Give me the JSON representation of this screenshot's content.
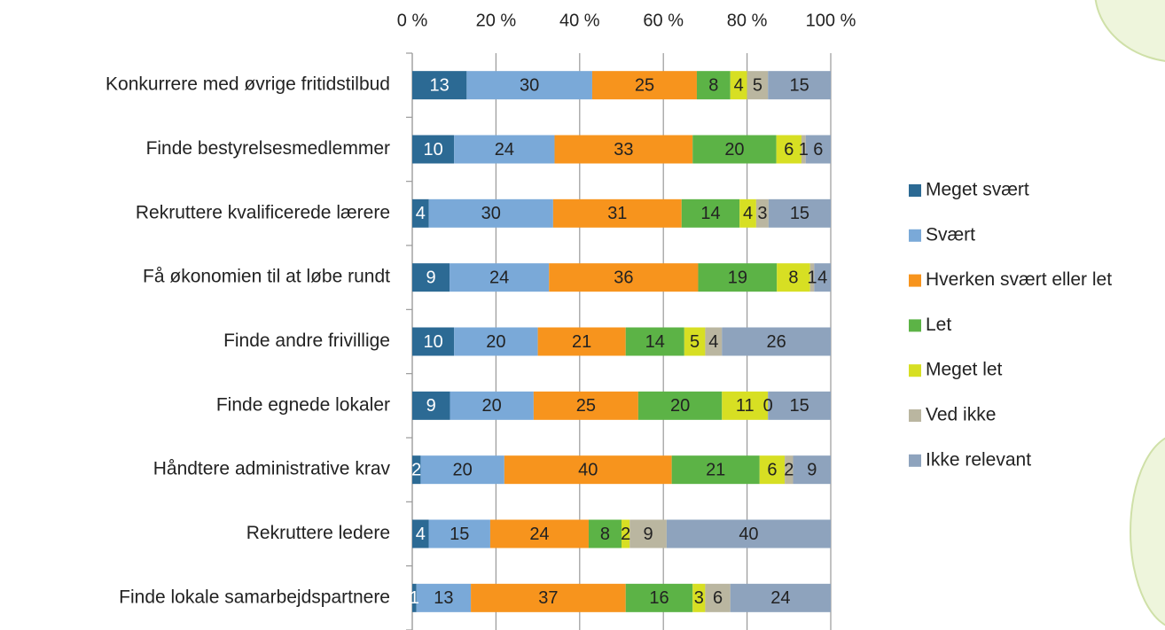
{
  "chart_data": {
    "type": "bar",
    "orientation": "horizontal",
    "stacked": "percent",
    "categories": [
      "Konkurrere med øvrige fritidstilbud",
      "Finde bestyrelsesmedlemmer",
      "Rekruttere kvalificerede lærere",
      "Få økonomien til at løbe rundt",
      "Finde andre frivillige",
      "Finde egnede lokaler",
      "Håndtere administrative krav",
      "Rekruttere ledere",
      "Finde lokale samarbejdspartnere"
    ],
    "series": [
      {
        "name": "Meget svært",
        "color": "#2c6a94",
        "values": [
          13,
          10,
          4,
          9,
          10,
          9,
          2,
          4,
          1
        ]
      },
      {
        "name": "Svært",
        "color": "#7aa9d8",
        "values": [
          30,
          24,
          30,
          24,
          20,
          20,
          20,
          15,
          13
        ]
      },
      {
        "name": "Hverken svært eller let",
        "color": "#f7941d",
        "values": [
          25,
          33,
          31,
          36,
          21,
          25,
          40,
          24,
          37
        ]
      },
      {
        "name": "Let",
        "color": "#5cb346",
        "values": [
          8,
          20,
          14,
          19,
          14,
          20,
          21,
          8,
          16
        ]
      },
      {
        "name": "Meget let",
        "color": "#d7df23",
        "values": [
          4,
          6,
          4,
          8,
          5,
          11,
          6,
          2,
          3
        ]
      },
      {
        "name": "Ved ikke",
        "color": "#bab6a0",
        "values": [
          5,
          1,
          3,
          1,
          4,
          0,
          2,
          9,
          6
        ]
      },
      {
        "name": "Ikke relevant",
        "color": "#8ea3bd",
        "values": [
          15,
          6,
          15,
          4,
          26,
          15,
          9,
          40,
          24
        ]
      }
    ],
    "xlim": [
      0,
      100
    ],
    "xticks": [
      {
        "value": 0,
        "label": "0 %"
      },
      {
        "value": 20,
        "label": "20 %"
      },
      {
        "value": 40,
        "label": "40 %"
      },
      {
        "value": 60,
        "label": "60 %"
      },
      {
        "value": 80,
        "label": "80 %"
      },
      {
        "value": 100,
        "label": "100 %"
      }
    ],
    "grid": true,
    "legend": "right",
    "data_labels": true
  }
}
